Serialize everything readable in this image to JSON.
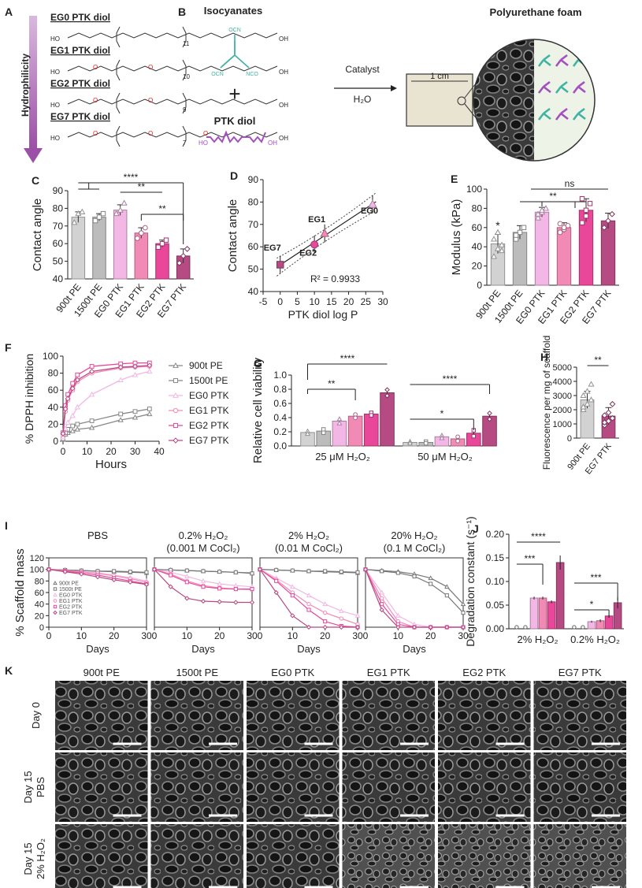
{
  "colors": {
    "pe900": "#d2d2d2",
    "pe1500": "#bcbcbc",
    "eg0": "#f2b7e4",
    "eg1": "#f28ab6",
    "eg2": "#e8479a",
    "eg7": "#b64a82",
    "teal": "#3fb3a3",
    "purple": "#a44ec0",
    "arrow": "#9b4fa6"
  },
  "panel_a": {
    "letter": "A",
    "axis_label": "Hydrophilicity",
    "diols": [
      {
        "name": "EG0 PTK diol",
        "formula": "HO–(CH₂)₆–S–C(CH₃)₂–S–(CH₂)₆–[…]₁₁–S–(CH₂)₂–OH",
        "repeat": "11"
      },
      {
        "name": "EG1 PTK diol",
        "formula": "HO–CH₂CH₂–O–CH₂CH₂–S–C(CH₃)₂–S–[…]₁₀–OH",
        "repeat": "10"
      },
      {
        "name": "EG2 PTK diol",
        "formula": "HO–(CH₂CH₂O)₂–S–C(CH₃)₂–S–[…]₉–(OCH₂CH₂)₂–S–OH",
        "repeat": "9"
      },
      {
        "name": "EG7 PTK diol",
        "formula": "HO–(CH₂CH₂O)₇–C(=O)NH–C(CH₃)₂–S–S–NHC(=O)–(OCH₂CH₂)₇–OH",
        "repeat": "7"
      }
    ]
  },
  "panel_b": {
    "letter": "B",
    "isocyanates": "Isocyanates",
    "plus": "+",
    "ptk_diol": "PTK diol",
    "ho": "HO",
    "oh": "OH",
    "catalyst": "Catalyst",
    "water": "H₂O",
    "foam_title": "Polyurethane foam",
    "scale": "1 cm"
  },
  "chart_data": [
    {
      "panel": "C",
      "type": "bar",
      "categories": [
        "900t PE",
        "1500t PE",
        "EG0 PTK",
        "EG1 PTK",
        "EG2 PTK",
        "EG7 PTK"
      ],
      "values": [
        75,
        75,
        79,
        66,
        60,
        53
      ],
      "errors": [
        3,
        2,
        3,
        3,
        2,
        4
      ],
      "points": [
        [
          72,
          77,
          78
        ],
        [
          73,
          75,
          77
        ],
        [
          77,
          79,
          83
        ],
        [
          63,
          66,
          69
        ],
        [
          58,
          60,
          62
        ],
        [
          49,
          53,
          57
        ]
      ],
      "ylabel": "Contact angle",
      "ylim": [
        40,
        90
      ],
      "yticks": [
        40,
        50,
        60,
        70,
        80,
        90
      ],
      "significance": [
        "****",
        "**",
        "**"
      ]
    },
    {
      "panel": "D",
      "type": "scatter",
      "points": [
        {
          "label": "EG7",
          "x": 0,
          "y": 52
        },
        {
          "label": "EG2",
          "x": 10,
          "y": 61
        },
        {
          "label": "EG1",
          "x": 13,
          "y": 66
        },
        {
          "label": "EG0",
          "x": 27,
          "y": 79
        }
      ],
      "xlabel": "PTK diol log P",
      "ylabel": "Contact angle",
      "xlim": [
        -5,
        30
      ],
      "ylim": [
        40,
        90
      ],
      "xticks": [
        -5,
        0,
        5,
        10,
        15,
        20,
        25,
        30
      ],
      "yticks": [
        40,
        50,
        60,
        70,
        80,
        90
      ],
      "r2_label": "R² = 0.9933"
    },
    {
      "panel": "E",
      "type": "bar",
      "categories": [
        "900t PE",
        "1500t PE",
        "EG0 PTK",
        "EG1 PTK",
        "EG2 PTK",
        "EG7 PTK"
      ],
      "values": [
        43,
        55,
        76,
        60,
        78,
        67
      ],
      "errors": [
        10,
        7,
        5,
        5,
        12,
        8
      ],
      "points": [
        [
          30,
          38,
          42,
          48,
          55,
          36
        ],
        [
          48,
          55,
          60,
          52
        ],
        [
          70,
          76,
          80,
          74,
          78
        ],
        [
          55,
          58,
          62,
          64,
          60
        ],
        [
          65,
          72,
          85,
          90,
          78
        ],
        [
          60,
          67,
          74
        ]
      ],
      "ylabel": "Modulus (kPa)",
      "ylim": [
        0,
        100
      ],
      "yticks": [
        0,
        20,
        40,
        60,
        80,
        100
      ],
      "significance": [
        "*",
        "**",
        "ns"
      ]
    },
    {
      "panel": "F",
      "type": "line",
      "x": [
        0,
        1,
        2,
        4,
        6,
        12,
        24,
        30,
        36
      ],
      "series": [
        {
          "name": "900t PE",
          "values": [
            2,
            8,
            10,
            12,
            14,
            16,
            25,
            28,
            32
          ]
        },
        {
          "name": "1500t PE",
          "values": [
            3,
            10,
            14,
            18,
            20,
            24,
            32,
            35,
            38
          ]
        },
        {
          "name": "EG0 PTK",
          "values": [
            5,
            15,
            22,
            30,
            40,
            55,
            72,
            78,
            82
          ]
        },
        {
          "name": "EG1 PTK",
          "values": [
            8,
            35,
            48,
            60,
            70,
            80,
            86,
            87,
            88
          ]
        },
        {
          "name": "EG2 PTK",
          "values": [
            10,
            42,
            55,
            68,
            78,
            88,
            91,
            92,
            92
          ]
        },
        {
          "name": "EG7 PTK",
          "values": [
            9,
            38,
            50,
            62,
            72,
            82,
            87,
            88,
            89
          ]
        }
      ],
      "xlabel": "Hours",
      "ylabel": "% DPPH inhibition",
      "xlim": [
        0,
        40
      ],
      "ylim": [
        0,
        100
      ],
      "xticks": [
        0,
        10,
        20,
        30,
        40
      ],
      "yticks": [
        0,
        20,
        40,
        60,
        80,
        100
      ]
    },
    {
      "panel": "G",
      "type": "bar",
      "groups": [
        "25 μM H₂O₂",
        "50 μM H₂O₂"
      ],
      "categories": [
        "900t PE",
        "1500t PE",
        "EG0 PTK",
        "EG1 PTK",
        "EG2 PTK",
        "EG7 PTK"
      ],
      "values": [
        [
          0.19,
          0.21,
          0.35,
          0.42,
          0.45,
          0.75
        ],
        [
          0.05,
          0.05,
          0.13,
          0.1,
          0.18,
          0.42
        ]
      ],
      "errors": [
        [
          0.03,
          0.04,
          0.05,
          0.04,
          0.03,
          0.07
        ],
        [
          0.02,
          0.02,
          0.03,
          0.05,
          0.07,
          0.07
        ]
      ],
      "ylabel": "Relative cell viability",
      "ylim": [
        0,
        1.0
      ],
      "yticks": [
        0.0,
        0.2,
        0.4,
        0.6,
        0.8,
        1.0
      ],
      "ytick_labels": [
        "0.0",
        "0.2",
        "0.4",
        "0.6",
        "0.8",
        "1.0"
      ],
      "significance": [
        "****",
        "**",
        "****",
        "*"
      ]
    },
    {
      "panel": "H",
      "type": "bar",
      "categories": [
        "900t PE",
        "EG7 PTK"
      ],
      "values": [
        2700,
        1550
      ],
      "errors": [
        600,
        600
      ],
      "points": [
        [
          2000,
          2400,
          2700,
          3000,
          3300,
          3800,
          2200
        ],
        [
          900,
          1200,
          1400,
          1600,
          1800,
          2400,
          1100
        ]
      ],
      "ylabel": "Fluorescence per mg of scaffold",
      "ylim": [
        0,
        5000
      ],
      "yticks": [
        0,
        1000,
        2000,
        3000,
        4000,
        5000
      ],
      "significance": [
        "**"
      ]
    },
    {
      "panel": "I",
      "type": "line",
      "subpanels": [
        {
          "title": "PBS",
          "title2": "",
          "series": [
            {
              "name": "900t PE",
              "values": [
                100,
                99,
                98,
                97,
                96,
                95,
                94
              ]
            },
            {
              "name": "1500t PE",
              "values": [
                100,
                99,
                98,
                97,
                97,
                96,
                95
              ]
            },
            {
              "name": "EG0 PTK",
              "values": [
                100,
                98,
                96,
                94,
                90,
                86,
                80
              ]
            },
            {
              "name": "EG1 PTK",
              "values": [
                100,
                98,
                96,
                93,
                89,
                84,
                78
              ]
            },
            {
              "name": "EG2 PTK",
              "values": [
                100,
                97,
                94,
                90,
                85,
                80,
                75
              ]
            },
            {
              "name": "EG7 PTK",
              "values": [
                100,
                96,
                92,
                87,
                82,
                78,
                74
              ]
            }
          ]
        },
        {
          "title": "0.2% H₂O₂",
          "title2": "(0.001 M CoCl₂)",
          "series": [
            {
              "name": "900t PE",
              "values": [
                100,
                99,
                98,
                97,
                96,
                95,
                94
              ]
            },
            {
              "name": "1500t PE",
              "values": [
                100,
                99,
                98,
                97,
                96,
                95,
                93
              ]
            },
            {
              "name": "EG0 PTK",
              "values": [
                100,
                95,
                88,
                80,
                75,
                72,
                70
              ]
            },
            {
              "name": "EG1 PTK",
              "values": [
                100,
                92,
                80,
                72,
                68,
                66,
                65
              ]
            },
            {
              "name": "EG2 PTK",
              "values": [
                100,
                90,
                78,
                70,
                67,
                66,
                66
              ]
            },
            {
              "name": "EG7 PTK",
              "values": [
                100,
                70,
                50,
                45,
                44,
                43,
                43
              ]
            }
          ]
        },
        {
          "title": "2% H₂O₂",
          "title2": "(0.01 M CoCl₂)",
          "series": [
            {
              "name": "900t PE",
              "values": [
                100,
                99,
                98,
                97,
                96,
                95,
                94
              ]
            },
            {
              "name": "1500t PE",
              "values": [
                100,
                99,
                98,
                97,
                97,
                96,
                95
              ]
            },
            {
              "name": "EG0 PTK",
              "values": [
                100,
                85,
                70,
                55,
                40,
                28,
                20
              ]
            },
            {
              "name": "EG1 PTK",
              "values": [
                100,
                82,
                60,
                40,
                25,
                15,
                5
              ]
            },
            {
              "name": "EG2 PTK",
              "values": [
                100,
                80,
                55,
                30,
                10,
                2,
                0
              ]
            },
            {
              "name": "EG7 PTK",
              "values": [
                100,
                60,
                20,
                0,
                0,
                0,
                0
              ]
            }
          ]
        },
        {
          "title": "20% H₂O₂",
          "title2": "(0.1 M CoCl₂)",
          "series": [
            {
              "name": "900t PE",
              "values": [
                100,
                98,
                96,
                92,
                85,
                70,
                40
              ]
            },
            {
              "name": "1500t PE",
              "values": [
                100,
                97,
                94,
                88,
                75,
                55,
                25
              ]
            },
            {
              "name": "EG0 PTK",
              "values": [
                100,
                60,
                20,
                5,
                0,
                0,
                0
              ]
            },
            {
              "name": "EG1 PTK",
              "values": [
                100,
                50,
                10,
                0,
                0,
                0,
                0
              ]
            },
            {
              "name": "EG2 PTK",
              "values": [
                100,
                40,
                5,
                0,
                0,
                0,
                0
              ]
            },
            {
              "name": "EG7 PTK",
              "values": [
                100,
                30,
                0,
                0,
                0,
                0,
                0
              ]
            }
          ]
        }
      ],
      "x": [
        0,
        5,
        10,
        15,
        20,
        25,
        30
      ],
      "xlabel": "Days",
      "ylabel": "% Scaffold mass",
      "xlim": [
        0,
        30
      ],
      "ylim": [
        0,
        120
      ],
      "xticks": [
        0,
        10,
        20,
        30
      ],
      "yticks": [
        0,
        20,
        40,
        60,
        80,
        100,
        120
      ],
      "legend": [
        "900t PE",
        "1500t PE",
        "EG0 PTK",
        "EG1 PTK",
        "EG2 PTK",
        "EG7 PTK"
      ]
    },
    {
      "panel": "J",
      "type": "bar",
      "groups": [
        "2% H₂O₂",
        "0.2% H₂O₂"
      ],
      "categories": [
        "900t PE",
        "1500t PE",
        "EG0 PTK",
        "EG1 PTK",
        "EG2 PTK",
        "EG7 PTK"
      ],
      "values": [
        [
          0.0,
          0.0,
          0.065,
          0.065,
          0.057,
          0.14
        ],
        [
          0.0,
          0.0,
          0.015,
          0.017,
          0.027,
          0.055
        ]
      ],
      "errors": [
        [
          0.0,
          0.0,
          0.003,
          0.003,
          0.003,
          0.015
        ],
        [
          0.0,
          0.0,
          0.002,
          0.003,
          0.003,
          0.012
        ]
      ],
      "ylabel": "Degradation constant (s⁻¹)",
      "ylim": [
        0,
        0.2
      ],
      "yticks": [
        0.0,
        0.05,
        0.1,
        0.15,
        0.2
      ],
      "ytick_labels": [
        "0.00",
        "0.05",
        "0.10",
        "0.15",
        "0.20"
      ],
      "significance": [
        "****",
        "***",
        "***",
        "*"
      ]
    }
  ],
  "panel_k": {
    "letter": "K",
    "columns": [
      "900t PE",
      "1500t PE",
      "EG0 PTK",
      "EG1 PTK",
      "EG2 PTK",
      "EG7 PTK"
    ],
    "rows": [
      {
        "line1": "Day 0",
        "line2": ""
      },
      {
        "line1": "Day 15",
        "line2": "PBS"
      },
      {
        "line1": "Day 15",
        "line2": "2% H₂O₂"
      }
    ]
  }
}
